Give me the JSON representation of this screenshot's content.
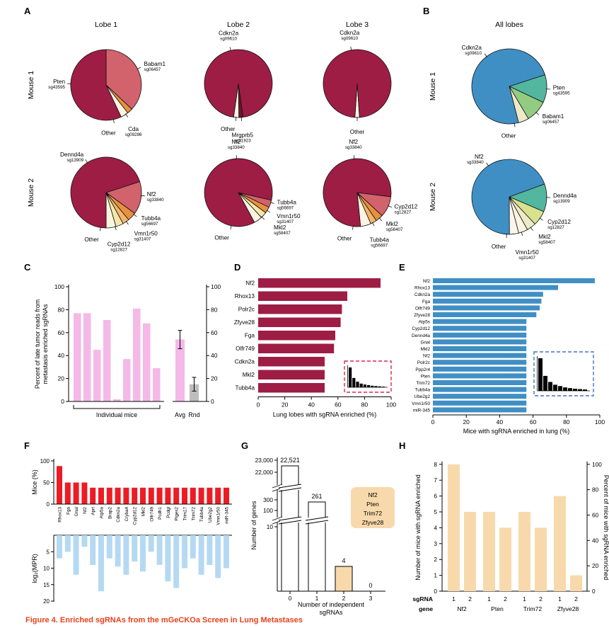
{
  "caption": "Figure 4.  Enriched sgRNAs from the mGeCKOa Screen in Lung Metastases",
  "colors": {
    "crimson": "#9e1d45",
    "lightred": "#d2626c",
    "orange": "#e79140",
    "lightorange": "#f2b56b",
    "yellow": "#f5e6a9",
    "cream": "#faf4e0",
    "maroon": "#6f1430",
    "blue": "#3f8fc5",
    "teal": "#53b69e",
    "green": "#93cb82",
    "yellowgreen": "#d8e18d",
    "paleyellow": "#eee9c8",
    "whiteish": "#f8f6ea",
    "pink": "#f4b9e7",
    "grey": "#bdbdbd",
    "red": "#ec1c24",
    "lightblue": "#b5d9f2",
    "peach": "#f8d9ac",
    "insetRed": "#d62a4e",
    "insetBlue": "#4472c4",
    "caption_red": "#e8401a"
  },
  "panelA": {
    "label": "A",
    "columns": [
      "Lobe 1",
      "Lobe 2",
      "Lobe 3"
    ],
    "rows": [
      "Mouse 1",
      "Mouse 2"
    ],
    "pies": [
      {
        "id": "mouse1-lobe1",
        "start": 0,
        "slices": [
          {
            "name": "Babam1",
            "pct": 37,
            "color": "lightred"
          },
          {
            "name": "Cda",
            "pct": 2.5,
            "color": "orange"
          },
          {
            "name": "Other",
            "pct": 3.5,
            "color": "cream"
          },
          {
            "name": "Pten",
            "pct": 57,
            "color": "crimson"
          }
        ],
        "labels": [
          {
            "name": "Babam1",
            "sg": "sg06457",
            "angle": 63,
            "rad": 10,
            "anchor": "start"
          },
          {
            "name": "Pten",
            "sg": "sg43595",
            "angle": 272,
            "rad": 8,
            "anchor": "end"
          },
          {
            "name": "Other",
            "sg": "",
            "angle": 168,
            "rad": 16,
            "anchor": "end",
            "dy": 6
          },
          {
            "name": "Cda",
            "sg": "sg09286",
            "angle": 146,
            "rad": 19,
            "anchor": "middle",
            "dy": 8
          }
        ]
      },
      {
        "id": "mouse1-lobe2",
        "start": 172,
        "slices": [
          {
            "name": "Mrgprb5",
            "pct": 2,
            "color": "maroon"
          },
          {
            "name": "Other",
            "pct": 2.5,
            "color": "cream"
          },
          {
            "name": "Cdkn2a",
            "pct": 95.5,
            "color": "crimson"
          }
        ],
        "labels": [
          {
            "name": "Cdkn2a",
            "sg": "sg09610",
            "angle": 347,
            "rad": 14,
            "anchor": "middle",
            "dy": -8
          },
          {
            "name": "Mrgprb5",
            "sg": "sg31923",
            "angle": 175,
            "rad": 19,
            "anchor": "middle",
            "dy": 9
          },
          {
            "name": "Other",
            "sg": "",
            "angle": 184,
            "rad": 16,
            "anchor": "end",
            "dy": 3
          }
        ]
      },
      {
        "id": "mouse1-lobe3",
        "start": 176,
        "slices": [
          {
            "name": "Other",
            "pct": 2.2,
            "color": "cream"
          },
          {
            "name": "Cdkn2a",
            "pct": 97.8,
            "color": "crimson"
          }
        ],
        "labels": [
          {
            "name": "Cdkn2a",
            "sg": "sg09610",
            "angle": 350,
            "rad": 14,
            "anchor": "middle",
            "dy": -8
          },
          {
            "name": "Other",
            "sg": "",
            "angle": 180,
            "rad": 17,
            "anchor": "middle",
            "dy": 6
          }
        ]
      },
      {
        "id": "mouse2-lobe1",
        "start": 72,
        "slices": [
          {
            "name": "Nf2",
            "pct": 15,
            "color": "lightred"
          },
          {
            "name": "Tubb4a",
            "pct": 4,
            "color": "orange"
          },
          {
            "name": "Vmn1r50",
            "pct": 3,
            "color": "lightorange"
          },
          {
            "name": "Cyp2d12",
            "pct": 3.5,
            "color": "yellow"
          },
          {
            "name": "Other",
            "pct": 4.5,
            "color": "cream"
          },
          {
            "name": "Dennd4a",
            "pct": 70,
            "color": "crimson"
          }
        ],
        "labels": [
          {
            "name": "Dennd4a",
            "sg": "sg13909",
            "angle": 328,
            "rad": 10,
            "anchor": "end"
          },
          {
            "name": "Nf2",
            "sg": "sg33840",
            "angle": 95,
            "rad": 8,
            "anchor": "start"
          },
          {
            "name": "Tubb4a",
            "sg": "sg56697",
            "angle": 128,
            "rad": 13,
            "anchor": "start"
          },
          {
            "name": "Vmn1r50",
            "sg": "sg31407",
            "angle": 145,
            "rad": 19,
            "anchor": "start",
            "dy": 4
          },
          {
            "name": "Cyp2d12",
            "sg": "sg12827",
            "angle": 165,
            "rad": 20,
            "anchor": "middle",
            "dy": 8
          },
          {
            "name": "Other",
            "sg": "",
            "angle": 189,
            "rad": 15,
            "anchor": "end",
            "dy": 5
          }
        ]
      },
      {
        "id": "mouse2-lobe2",
        "start": 103,
        "slices": [
          {
            "name": "Tubb4a",
            "pct": 3.5,
            "color": "lightred"
          },
          {
            "name": "Vmn1r50",
            "pct": 3,
            "color": "orange"
          },
          {
            "name": "Mkl2",
            "pct": 3,
            "color": "yellow"
          },
          {
            "name": "Other",
            "pct": 4,
            "color": "cream"
          },
          {
            "name": "Nf2",
            "pct": 86.5,
            "color": "crimson"
          }
        ],
        "labels": [
          {
            "name": "Nf2",
            "sg": "sg33840",
            "angle": 357,
            "rad": 13,
            "anchor": "middle",
            "dy": -8
          },
          {
            "name": "Tubb4a",
            "sg": "sg56697",
            "angle": 107,
            "rad": 9,
            "anchor": "start"
          },
          {
            "name": "Vmn1r50",
            "sg": "sg31407",
            "angle": 122,
            "rad": 16,
            "anchor": "start",
            "dy": 2
          },
          {
            "name": "Mkl2",
            "sg": "sg58407",
            "angle": 136,
            "rad": 24,
            "anchor": "start"
          },
          {
            "name": "Other",
            "sg": "",
            "angle": 192,
            "rad": 15,
            "anchor": "end",
            "dy": 5
          }
        ]
      },
      {
        "id": "mouse2-lobe3",
        "start": 97,
        "slices": [
          {
            "name": "Cyp2d12",
            "pct": 10,
            "color": "lightred"
          },
          {
            "name": "Mkl2",
            "pct": 3.5,
            "color": "orange"
          },
          {
            "name": "Tubb4a",
            "pct": 3,
            "color": "lightorange"
          },
          {
            "name": "Other",
            "pct": 5,
            "color": "cream"
          },
          {
            "name": "Nf2",
            "pct": 78.5,
            "color": "crimson"
          }
        ],
        "labels": [
          {
            "name": "Nf2",
            "sg": "sg33840",
            "angle": 355,
            "rad": 13,
            "anchor": "middle",
            "dy": -8
          },
          {
            "name": "Cyp2d12",
            "sg": "sg12827",
            "angle": 113,
            "rad": 9,
            "anchor": "start"
          },
          {
            "name": "Mkl2",
            "sg": "sg58407",
            "angle": 139,
            "rad": 14,
            "anchor": "start"
          },
          {
            "name": "Tubb4a",
            "sg": "sg56697",
            "angle": 153,
            "rad": 21,
            "anchor": "middle",
            "dy": 8
          },
          {
            "name": "Other",
            "sg": "",
            "angle": 187,
            "rad": 15,
            "anchor": "end",
            "dy": 5
          }
        ]
      }
    ]
  },
  "panelB": {
    "label": "B",
    "title": "All lobes",
    "rows": [
      "Mouse 1",
      "Mouse 2"
    ],
    "pies": [
      {
        "id": "alllobes-mouse1",
        "start": 72,
        "slices": [
          {
            "name": "Pten",
            "pct": 12,
            "color": "teal"
          },
          {
            "name": "Babam1",
            "pct": 9.5,
            "color": "green"
          },
          {
            "name": "Other",
            "pct": 4.5,
            "color": "paleyellow"
          },
          {
            "name": "Cdkn2a",
            "pct": 74,
            "color": "blue"
          }
        ],
        "labels": [
          {
            "name": "Cdkn2a",
            "sg": "sg09610",
            "angle": 323,
            "rad": 12,
            "anchor": "end"
          },
          {
            "name": "Pten",
            "sg": "sg43595",
            "angle": 94,
            "rad": 9,
            "anchor": "start"
          },
          {
            "name": "Babam1",
            "sg": "sg06457",
            "angle": 134,
            "rad": 12,
            "anchor": "start"
          },
          {
            "name": "Other",
            "sg": "",
            "angle": 172,
            "rad": 14,
            "anchor": "end",
            "dy": 6
          }
        ]
      },
      {
        "id": "alllobes-mouse2",
        "start": 70,
        "slices": [
          {
            "name": "Dennd4a",
            "pct": 12,
            "color": "teal"
          },
          {
            "name": "Cyp2d12",
            "pct": 6.5,
            "color": "yellowgreen"
          },
          {
            "name": "Mkl2",
            "pct": 4,
            "color": "paleyellow"
          },
          {
            "name": "Vmn1r50",
            "pct": 4,
            "color": "cream"
          },
          {
            "name": "Other",
            "pct": 4,
            "color": "whiteish"
          },
          {
            "name": "Nf2",
            "pct": 69.5,
            "color": "blue"
          }
        ],
        "labels": [
          {
            "name": "Nf2",
            "sg": "sg33840",
            "angle": 326,
            "rad": 12,
            "anchor": "end"
          },
          {
            "name": "Dennd4a",
            "sg": "sg13909",
            "angle": 91,
            "rad": 9,
            "anchor": "start"
          },
          {
            "name": "Cyp2d12",
            "sg": "sg12827",
            "angle": 125,
            "rad": 13,
            "anchor": "start"
          },
          {
            "name": "Mkl2",
            "sg": "sg58407",
            "angle": 145,
            "rad": 19,
            "anchor": "start"
          },
          {
            "name": "Vmn1r50",
            "sg": "sg31407",
            "angle": 161,
            "rad": 24,
            "anchor": "middle",
            "dy": 8
          },
          {
            "name": "Other",
            "sg": "",
            "angle": 184,
            "rad": 15,
            "anchor": "end",
            "dy": 5
          }
        ]
      }
    ]
  },
  "panelC": {
    "label": "C",
    "ylabel_line1": "Percent of late tumor reads from",
    "ylabel_line2": "metastasis enriched sgRNAs",
    "yticks": [
      0,
      20,
      40,
      60,
      80,
      100
    ],
    "bars": [
      77,
      77,
      45,
      71,
      2,
      37,
      81,
      68,
      29
    ],
    "bar_color": "pink",
    "group_label": "Individual mice",
    "avg": {
      "label": "Avg",
      "value": 54,
      "error": 8,
      "color": "pink"
    },
    "rnd": {
      "label": "Rnd",
      "value": 15,
      "error": 6,
      "color": "grey"
    },
    "right_yticks": [
      0,
      20,
      40,
      60,
      80,
      100
    ]
  },
  "panelD": {
    "label": "D",
    "categories": [
      "Nf2",
      "Rhox13",
      "Polr2c",
      "Zfyve28",
      "Fga",
      "Olfr749",
      "Cdkn2a",
      "Mkl2",
      "Tubb4a"
    ],
    "values": [
      92,
      67,
      63,
      62,
      58,
      57,
      50,
      50,
      50
    ],
    "xticks": [
      0,
      20,
      40,
      60,
      80,
      100
    ],
    "xlabel": "Lung lobes with sgRNA enriched (%)",
    "bar_color": "crimson",
    "inset": {
      "border": "insetRed",
      "bars": [
        32,
        15,
        9,
        6,
        4.5,
        3.5,
        2.5,
        2,
        1.5,
        1
      ]
    }
  },
  "panelE": {
    "label": "E",
    "categories": [
      "Nf2",
      "Rhox13",
      "Cdkn2a",
      "Fga",
      "Olfr749",
      "Zfyve28",
      "Atp5s",
      "Cyp2d12",
      "Dennd4a",
      "Gnal",
      "Mkl2",
      "Nf2",
      "Polr2c",
      "Ppp2r4",
      "Pten",
      "Trim72",
      "Tubb4a",
      "Ube2g2",
      "Vmn1r50",
      "miR-345"
    ],
    "values": [
      97,
      75,
      66,
      65,
      64,
      62,
      56,
      56,
      56,
      56,
      56,
      56,
      56,
      56,
      56,
      56,
      56,
      56,
      56,
      56
    ],
    "xticks": [
      0,
      20,
      40,
      60,
      80,
      100
    ],
    "xlabel": "Mice with sgRNA enriched in lung (%)",
    "bar_color": "blue",
    "inset": {
      "border": "insetBlue",
      "bars": [
        48,
        22,
        13,
        9,
        7,
        5,
        4,
        3,
        2.5,
        2
      ]
    }
  },
  "panelF": {
    "label": "F",
    "genes": [
      "Rhox13",
      "Fga",
      "Gnal",
      "Nf2",
      "Aprt",
      "Atp5a",
      "Brap2",
      "Cdkn2a",
      "Cryba4",
      "Cyp2d12",
      "Mkl2",
      "Olfr749",
      "Pcdh1",
      "Pcdgl",
      "Ptges2",
      "Trim17",
      "Trim72",
      "Tubb4a",
      "Ube2g2",
      "Vmn1r50",
      "miR-345"
    ],
    "mice_pct": [
      88,
      50,
      50,
      50,
      38,
      38,
      38,
      38,
      38,
      38,
      38,
      38,
      38,
      38,
      38,
      38,
      38,
      38,
      38,
      38,
      38
    ],
    "mice_yticks": [
      0,
      50,
      100
    ],
    "mice_ylabel": "Mice (%)",
    "log2_mpr": [
      7,
      5,
      12,
      3.5,
      9,
      17,
      7,
      9.5,
      12,
      8,
      11,
      5,
      9,
      14,
      16,
      10,
      7,
      12,
      9,
      13,
      10
    ],
    "mpr_yticks": [
      5,
      10,
      15,
      20
    ],
    "mpr_ylabel": "log₂(MPR)"
  },
  "panelG": {
    "label": "G",
    "ylabel": "Number of genes",
    "xlabel_line1": "Number of independent",
    "xlabel_line2": "sgRNAs",
    "xticks": [
      "0",
      "1",
      "2",
      "3"
    ],
    "ytick_labels": [
      "23,000",
      "22,000",
      "300",
      "100",
      "10"
    ],
    "values": [
      22521,
      261,
      4,
      0
    ],
    "value_labels": [
      "22,521",
      "261",
      "4",
      "0"
    ],
    "highlight_genes": [
      "Nf2",
      "Pten",
      "Trim72",
      "Zfyve28"
    ]
  },
  "panelH": {
    "label": "H",
    "left_ylabel": "Number of mice with sgRNA enriched",
    "right_ylabel": "Percent of mice with sgRNA enriched",
    "left_yticks": [
      0,
      1,
      2,
      3,
      4,
      5,
      6,
      7,
      8
    ],
    "right_yticks": [
      0,
      20,
      40,
      60,
      80,
      100
    ],
    "values": [
      8,
      5,
      5,
      4,
      5,
      4,
      6,
      1
    ],
    "bar_color": "peach",
    "sgrna_header": "sgRNA",
    "gene_header": "gene",
    "sgrna_labels": [
      "1",
      "2",
      "1",
      "2",
      "1",
      "2",
      "1",
      "2"
    ],
    "genes": [
      "Nf2",
      "Pten",
      "Trim72",
      "Zfyve28"
    ]
  }
}
